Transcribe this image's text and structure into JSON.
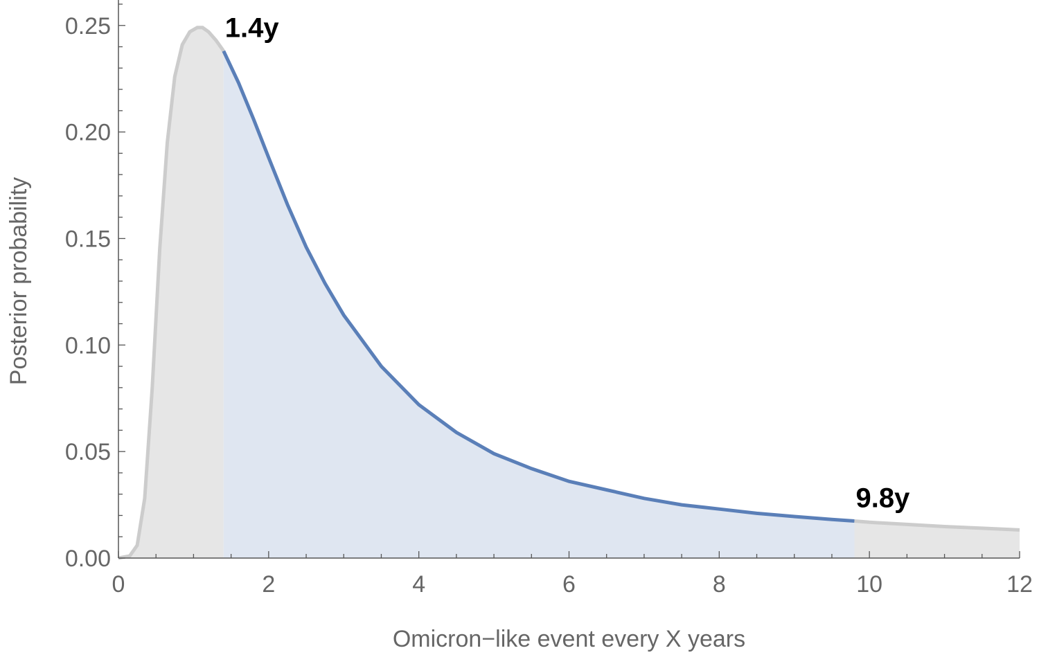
{
  "chart_data": {
    "type": "area",
    "title": "",
    "xlabel": "Omicron−like event every X years",
    "ylabel": "Posterior probability",
    "xlim": [
      0,
      12
    ],
    "ylim": [
      0,
      0.26
    ],
    "x_ticks": [
      0,
      2,
      4,
      6,
      8,
      10,
      12
    ],
    "x_tick_labels": [
      "0",
      "2",
      "4",
      "6",
      "8",
      "10",
      "12"
    ],
    "y_ticks": [
      0,
      0.05,
      0.1,
      0.15,
      0.2,
      0.25
    ],
    "y_tick_labels": [
      "0.00",
      "0.05",
      "0.10",
      "0.15",
      "0.20",
      "0.25"
    ],
    "grid": false,
    "legend": "none",
    "series": [
      {
        "x": [
          0,
          0.15,
          0.25,
          0.35,
          0.45,
          0.55,
          0.65,
          0.75,
          0.85,
          0.95,
          1.05,
          1.12,
          1.2,
          1.3,
          1.4,
          1.6,
          1.8,
          2.0,
          2.25,
          2.5,
          2.75,
          3.0,
          3.5,
          4.0,
          4.5,
          5.0,
          5.5,
          6.0,
          6.5,
          7.0,
          7.5,
          8.0,
          8.5,
          9.0,
          9.5,
          9.8,
          10.0,
          10.5,
          11.0,
          11.5,
          12.0
        ],
        "values": [
          0,
          0.001,
          0.006,
          0.028,
          0.08,
          0.145,
          0.195,
          0.226,
          0.241,
          0.247,
          0.249,
          0.249,
          0.247,
          0.243,
          0.238,
          0.223,
          0.206,
          0.188,
          0.166,
          0.146,
          0.129,
          0.114,
          0.09,
          0.072,
          0.059,
          0.049,
          0.042,
          0.036,
          0.032,
          0.028,
          0.025,
          0.023,
          0.021,
          0.0195,
          0.0181,
          0.0174,
          0.0168,
          0.0158,
          0.0148,
          0.014,
          0.0132
        ]
      }
    ],
    "highlight_interval": [
      1.4,
      9.8
    ],
    "annotations": [
      {
        "text": "1.4y",
        "x": 1.4
      },
      {
        "text": "9.8y",
        "x": 9.8
      }
    ],
    "colors": {
      "highlight_line": "#5a7fb8",
      "highlight_fill": "#dfe6f1",
      "outside_line": "#cccccc",
      "outside_fill": "#e6e6e6",
      "axis": "#555555",
      "tick_text": "#666666"
    }
  }
}
